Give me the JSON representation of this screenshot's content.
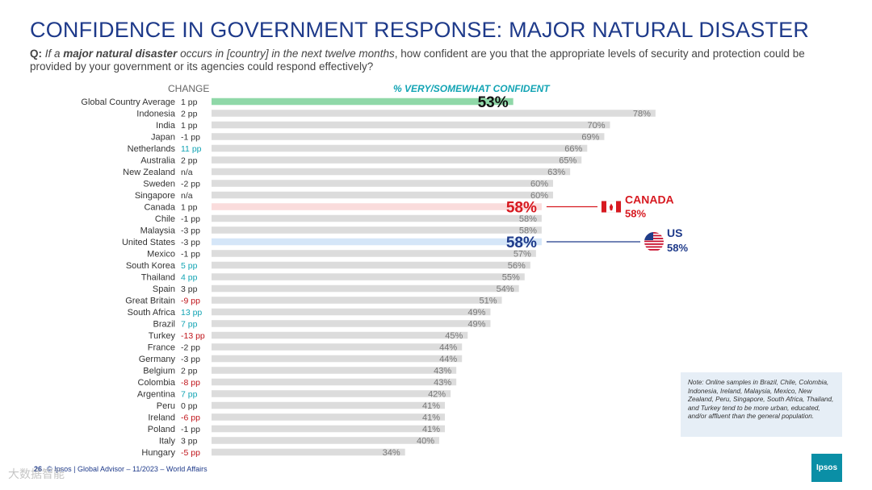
{
  "title": "CONFIDENCE IN GOVERNMENT RESPONSE: MAJOR NATURAL DISASTER",
  "question": {
    "prefix": "Q:",
    "part1": " If a ",
    "bold1": "major natural disaster",
    "part2": " occurs in [country] in the next twelve months",
    "part3": ", how confident are you that the appropriate levels of security and protection could be provided by your government or its agencies could respond effectively?"
  },
  "chart_data": {
    "type": "bar",
    "orientation": "horizontal",
    "change_header": "CHANGE",
    "series_label": "% VERY/SOMEWHAT CONFIDENT",
    "xlim": [
      0,
      100
    ],
    "rows": [
      {
        "country": "Global Country Average",
        "change": "1 pp",
        "value": 53,
        "label": "53%",
        "highlight": "avg"
      },
      {
        "country": "Indonesia",
        "change": "2 pp",
        "value": 78,
        "label": "78%"
      },
      {
        "country": "India",
        "change": "1 pp",
        "value": 70,
        "label": "70%"
      },
      {
        "country": "Japan",
        "change": "-1 pp",
        "value": 69,
        "label": "69%"
      },
      {
        "country": "Netherlands",
        "change": "11 pp",
        "value": 66,
        "label": "66%",
        "change_color": "up"
      },
      {
        "country": "Australia",
        "change": "2 pp",
        "value": 65,
        "label": "65%"
      },
      {
        "country": "New Zealand",
        "change": "n/a",
        "value": 63,
        "label": "63%"
      },
      {
        "country": "Sweden",
        "change": "-2 pp",
        "value": 60,
        "label": "60%"
      },
      {
        "country": "Singapore",
        "change": "n/a",
        "value": 60,
        "label": "60%"
      },
      {
        "country": "Canada",
        "change": "1 pp",
        "value": 58,
        "label": "58%",
        "highlight": "canada"
      },
      {
        "country": "Chile",
        "change": "-1 pp",
        "value": 58,
        "label": "58%"
      },
      {
        "country": "Malaysia",
        "change": "-3 pp",
        "value": 58,
        "label": "58%"
      },
      {
        "country": "United States",
        "change": "-3 pp",
        "value": 58,
        "label": "58%",
        "highlight": "us"
      },
      {
        "country": "Mexico",
        "change": "-1 pp",
        "value": 57,
        "label": "57%"
      },
      {
        "country": "South Korea",
        "change": "5 pp",
        "value": 56,
        "label": "56%",
        "change_color": "up"
      },
      {
        "country": "Thailand",
        "change": "4 pp",
        "value": 55,
        "label": "55%",
        "change_color": "up"
      },
      {
        "country": "Spain",
        "change": "3 pp",
        "value": 54,
        "label": "54%"
      },
      {
        "country": "Great Britain",
        "change": "-9 pp",
        "value": 51,
        "label": "51%",
        "change_color": "down"
      },
      {
        "country": "South Africa",
        "change": "13 pp",
        "value": 49,
        "label": "49%",
        "change_color": "up"
      },
      {
        "country": "Brazil",
        "change": "7 pp",
        "value": 49,
        "label": "49%",
        "change_color": "up"
      },
      {
        "country": "Turkey",
        "change": "-13 pp",
        "value": 45,
        "label": "45%",
        "change_color": "down"
      },
      {
        "country": "France",
        "change": "-2 pp",
        "value": 44,
        "label": "44%"
      },
      {
        "country": "Germany",
        "change": "-3 pp",
        "value": 44,
        "label": "44%"
      },
      {
        "country": "Belgium",
        "change": "2 pp",
        "value": 43,
        "label": "43%"
      },
      {
        "country": "Colombia",
        "change": "-8 pp",
        "value": 43,
        "label": "43%",
        "change_color": "down"
      },
      {
        "country": "Argentina",
        "change": "7 pp",
        "value": 42,
        "label": "42%",
        "change_color": "up"
      },
      {
        "country": "Peru",
        "change": "0 pp",
        "value": 41,
        "label": "41%"
      },
      {
        "country": "Ireland",
        "change": "-6 pp",
        "value": 41,
        "label": "41%",
        "change_color": "down"
      },
      {
        "country": "Poland",
        "change": "-1 pp",
        "value": 41,
        "label": "41%"
      },
      {
        "country": "Italy",
        "change": "3 pp",
        "value": 40,
        "label": "40%"
      },
      {
        "country": "Hungary",
        "change": "-5 pp",
        "value": 34,
        "label": "34%",
        "change_color": "down"
      }
    ],
    "callouts": {
      "canada": {
        "name": "CANADA",
        "value": "58%"
      },
      "us": {
        "name": "US",
        "value": "58%"
      }
    }
  },
  "colors": {
    "bar": "#dcdcdc",
    "avg_bar": "#8fd8a8",
    "canada_bar": "#fadcdc",
    "us_bar": "#d5e6f8",
    "canada_red": "#d71920",
    "us_navy": "#1e3a8a",
    "series_teal": "#13a4b4",
    "change_up": "#13a4b4",
    "change_down": "#c0151b",
    "change_neutral": "#333333"
  },
  "note": "Note: Online samples in Brazil, Chile, Colombia, Indonesia, Ireland, Malaysia, Mexico, New Zealand, Peru, Singapore, South Africa, Thailand, and Turkey tend to be more urban, educated, and/or affluent than the general population.",
  "footer": {
    "page": "26",
    "text": "© Ipsos | Global Advisor – 11/2023 – World Affairs"
  },
  "logo": "Ipsos",
  "watermark": "大数据智能"
}
